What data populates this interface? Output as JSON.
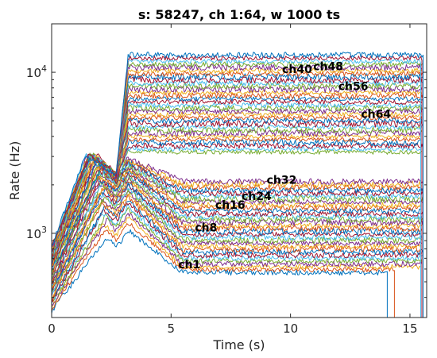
{
  "chart_data": {
    "type": "line",
    "title": "s: 58247, ch 1:64, w 1000 ts",
    "xlabel": "Time (s)",
    "ylabel": "Rate (Hz)",
    "xlim": [
      0,
      15.7
    ],
    "ylim": [
      300,
      20000
    ],
    "yscale": "log",
    "grid": false,
    "x_ticks": [
      0,
      5,
      10,
      15
    ],
    "x_tick_labels": [
      "0",
      "5",
      "10",
      "15"
    ],
    "y_ticks": [
      1000,
      10000
    ],
    "y_tick_labels": [
      {
        "base": "10",
        "exp": "3"
      },
      {
        "base": "10",
        "exp": "4"
      }
    ],
    "colors": [
      "#0072BD",
      "#D95319",
      "#EDB120",
      "#7E2F8E",
      "#77AC30",
      "#4DBEEE",
      "#A2142F"
    ],
    "series_count": 64,
    "plateau_start_s": 3.2,
    "series_end_times_s": {
      "default": 15.6,
      "ch1": 14.1,
      "ch2": 14.4
    },
    "representative_series": [
      {
        "label": "ch1",
        "early_peak": 950,
        "plateau": 570
      },
      {
        "label": "ch8",
        "early_peak": 1900,
        "plateau": 1200
      },
      {
        "label": "ch16",
        "early_peak": 2300,
        "plateau": 1500
      },
      {
        "label": "ch24",
        "early_peak": 2600,
        "plateau": 1700
      },
      {
        "label": "ch32",
        "early_peak": 2900,
        "plateau": 2100
      },
      {
        "label": "ch40",
        "early_peak": 3000,
        "plateau": 11000
      },
      {
        "label": "ch48",
        "early_peak": 2800,
        "plateau": 12000
      },
      {
        "label": "ch56",
        "early_peak": 2600,
        "plateau": 8300
      },
      {
        "label": "ch64",
        "early_peak": 2500,
        "plateau": 5600
      }
    ],
    "annotations": [
      {
        "text": "ch1",
        "x": 5.3,
        "y": 640
      },
      {
        "text": "ch8",
        "x": 6.0,
        "y": 1085
      },
      {
        "text": "ch16",
        "x": 6.85,
        "y": 1500
      },
      {
        "text": "ch24",
        "x": 7.95,
        "y": 1700
      },
      {
        "text": "ch32",
        "x": 9.0,
        "y": 2150
      },
      {
        "text": "ch40",
        "x": 9.65,
        "y": 10500
      },
      {
        "text": "ch48",
        "x": 10.95,
        "y": 10900
      },
      {
        "text": "ch56",
        "x": 12.0,
        "y": 8200
      },
      {
        "text": "ch64",
        "x": 12.95,
        "y": 5500
      }
    ]
  }
}
